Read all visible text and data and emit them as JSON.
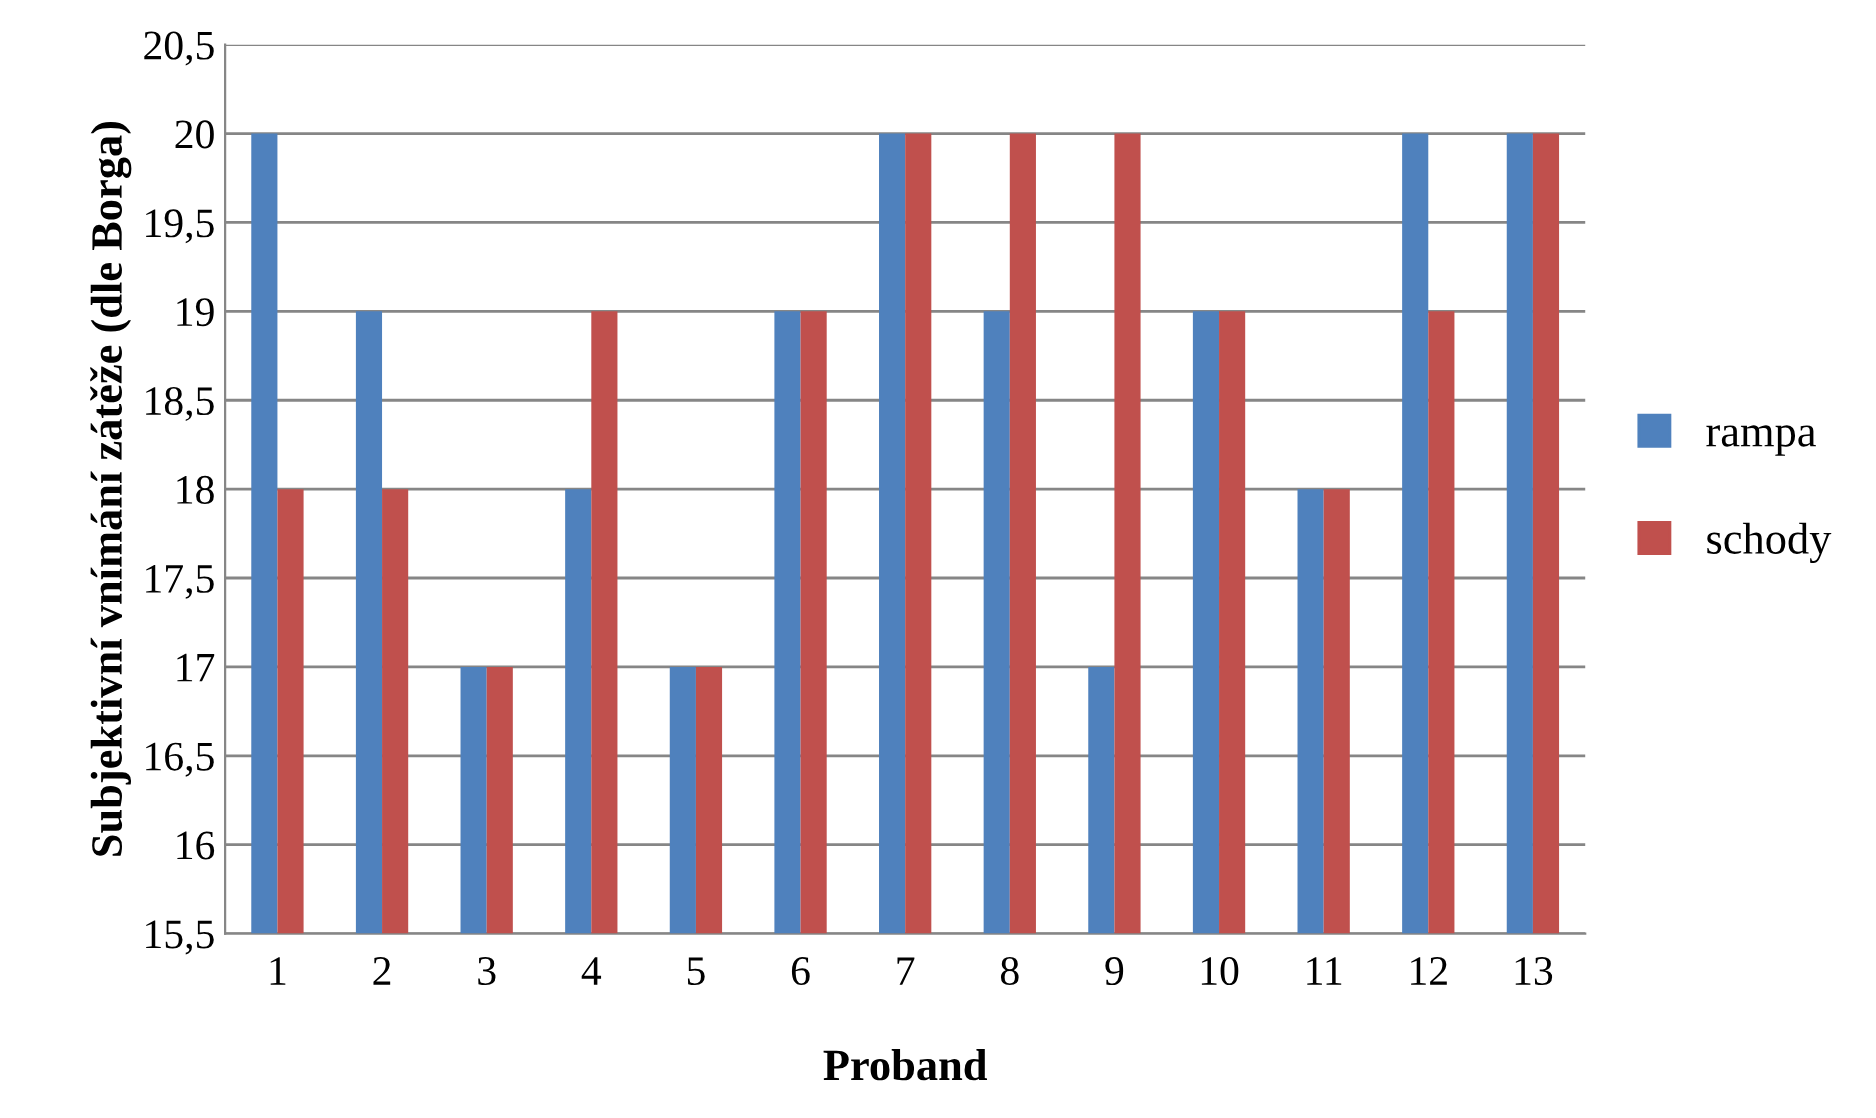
{
  "chart_data": {
    "type": "bar",
    "xlabel": "Proband",
    "ylabel": "Subjektivní vnímání zátěže (dle Borga)",
    "categories": [
      "1",
      "2",
      "3",
      "4",
      "5",
      "6",
      "7",
      "8",
      "9",
      "10",
      "11",
      "12",
      "13"
    ],
    "series": [
      {
        "name": "rampa",
        "color": "#4f81bd",
        "values": [
          20,
          19,
          17,
          18,
          17,
          19,
          20,
          19,
          17,
          19,
          18,
          20,
          20
        ]
      },
      {
        "name": "schody",
        "color": "#c0504d",
        "values": [
          18,
          18,
          17,
          19,
          17,
          19,
          20,
          20,
          20,
          19,
          18,
          19,
          20
        ]
      }
    ],
    "ylim": [
      15.5,
      20.5
    ],
    "yticks": [
      {
        "value": 15.5,
        "label": "15,5"
      },
      16,
      {
        "value": 16.5,
        "label": "16,5"
      },
      17,
      {
        "value": 17.5,
        "label": "17,5"
      },
      18,
      {
        "value": 18.5,
        "label": "18,5"
      },
      19,
      {
        "value": 19.5,
        "label": "19,5"
      },
      20,
      {
        "value": 20.5,
        "label": "20,5"
      }
    ],
    "grid": "y",
    "legend": "right"
  }
}
